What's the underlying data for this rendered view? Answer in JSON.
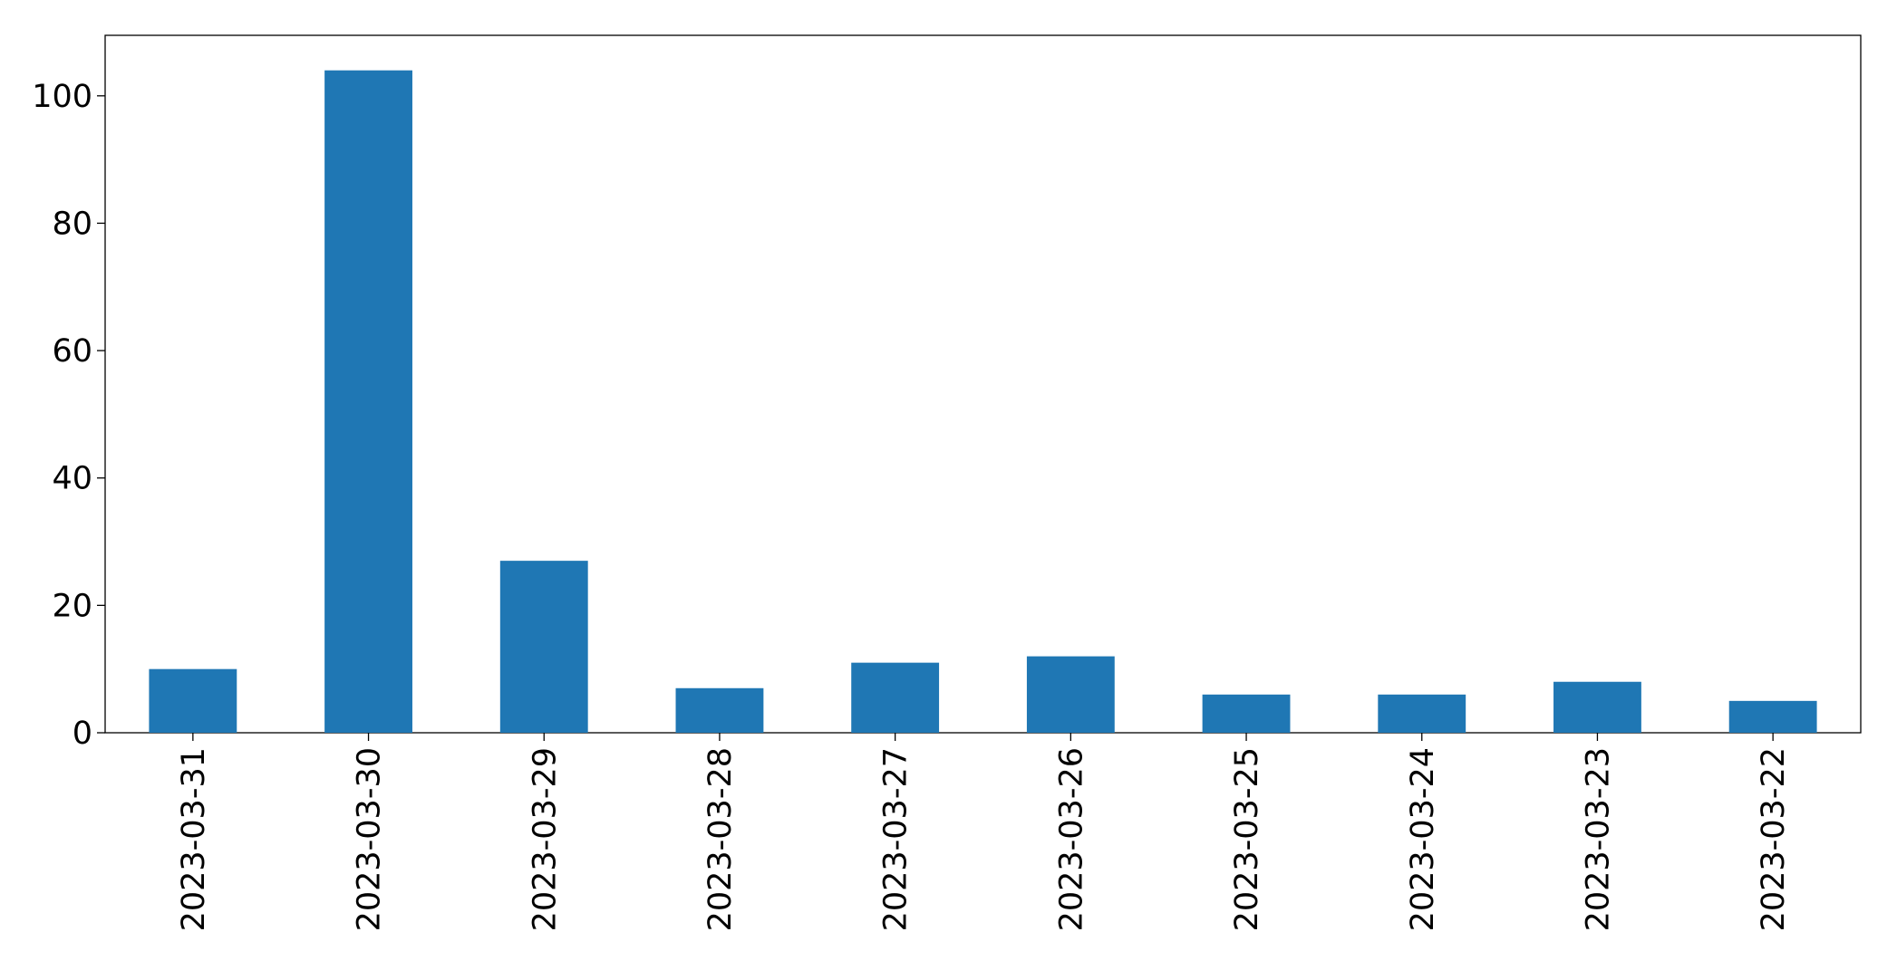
{
  "chart_data": {
    "type": "bar",
    "categories": [
      "2023-03-31",
      "2023-03-30",
      "2023-03-29",
      "2023-03-28",
      "2023-03-27",
      "2023-03-26",
      "2023-03-25",
      "2023-03-24",
      "2023-03-23",
      "2023-03-22"
    ],
    "values": [
      10,
      104,
      27,
      7,
      11,
      12,
      6,
      6,
      8,
      5
    ],
    "color": "#1f77b4",
    "ylim": [
      0,
      109.5
    ],
    "yticks": [
      0,
      20,
      40,
      60,
      80,
      100
    ],
    "grid": false
  }
}
